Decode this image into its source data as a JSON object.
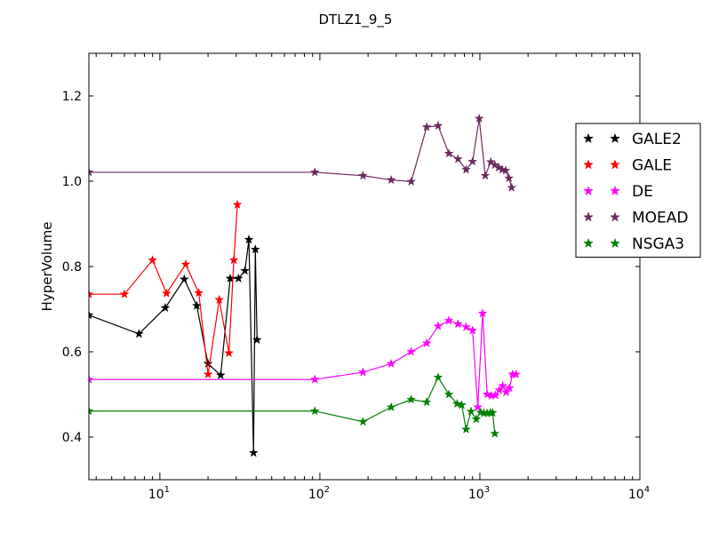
{
  "chart_data": {
    "type": "line",
    "title": "DTLZ1_9_5",
    "xlabel": "",
    "ylabel": "HyperVolume",
    "x_scale": "log",
    "xlim": [
      3.6,
      10000
    ],
    "ylim": [
      0.3,
      1.3
    ],
    "x_ticks": [
      {
        "value": 10,
        "base": "10",
        "exp": "1"
      },
      {
        "value": 100,
        "base": "10",
        "exp": "2"
      },
      {
        "value": 1000,
        "base": "10",
        "exp": "3"
      },
      {
        "value": 10000,
        "base": "10",
        "exp": "4"
      }
    ],
    "y_ticks": [
      {
        "value": 0.4,
        "label": "0.4"
      },
      {
        "value": 0.6,
        "label": "0.6"
      },
      {
        "value": 0.8,
        "label": "0.8"
      },
      {
        "value": 1.0,
        "label": "1.0"
      },
      {
        "value": 1.2,
        "label": "1.2"
      }
    ],
    "grid": false,
    "legend_position": "right",
    "series": [
      {
        "name": "GALE2",
        "color": "#000000",
        "x": [
          3.6,
          7.4,
          10.8,
          14.2,
          17.0,
          20.0,
          24.0,
          27.5,
          31.0,
          34.0,
          36.0,
          38.5,
          39.5,
          40.5
        ],
        "y": [
          0.686,
          0.642,
          0.703,
          0.77,
          0.708,
          0.572,
          0.545,
          0.772,
          0.772,
          0.79,
          0.863,
          0.363,
          0.84,
          0.628
        ]
      },
      {
        "name": "GALE",
        "color": "#ff0000",
        "x": [
          3.6,
          6.0,
          9.0,
          11.0,
          14.5,
          17.5,
          20.0,
          23.5,
          27.0,
          29.0,
          30.5
        ],
        "y": [
          0.735,
          0.735,
          0.815,
          0.737,
          0.805,
          0.738,
          0.547,
          0.722,
          0.597,
          0.815,
          0.945
        ]
      },
      {
        "name": "DE",
        "color": "#ff00ff",
        "x": [
          3.6,
          93,
          186,
          279,
          372,
          465,
          548,
          640,
          730,
          820,
          900,
          970,
          1040,
          1110,
          1180,
          1250,
          1320,
          1390,
          1460,
          1530,
          1600,
          1680
        ],
        "y": [
          0.535,
          0.535,
          0.552,
          0.572,
          0.6,
          0.62,
          0.66,
          0.673,
          0.665,
          0.658,
          0.65,
          0.47,
          0.69,
          0.5,
          0.497,
          0.498,
          0.51,
          0.52,
          0.505,
          0.515,
          0.547,
          0.547
        ]
      },
      {
        "name": "MOEAD",
        "color": "#6b2b5e",
        "x": [
          3.6,
          93,
          186,
          279,
          372,
          465,
          548,
          640,
          730,
          820,
          900,
          990,
          1080,
          1170,
          1240,
          1310,
          1380,
          1450,
          1520,
          1580
        ],
        "y": [
          1.021,
          1.021,
          1.013,
          1.003,
          0.999,
          1.127,
          1.13,
          1.065,
          1.052,
          1.027,
          1.046,
          1.147,
          1.013,
          1.045,
          1.038,
          1.032,
          1.027,
          1.025,
          1.007,
          0.985
        ]
      },
      {
        "name": "NSGA3",
        "color": "#008000",
        "x": [
          3.6,
          93,
          186,
          279,
          372,
          465,
          548,
          640,
          720,
          770,
          820,
          880,
          950,
          1010,
          1060,
          1110,
          1160,
          1200,
          1240
        ],
        "y": [
          0.461,
          0.461,
          0.436,
          0.47,
          0.488,
          0.482,
          0.54,
          0.5,
          0.478,
          0.475,
          0.418,
          0.46,
          0.442,
          0.458,
          0.456,
          0.456,
          0.457,
          0.457,
          0.408
        ]
      }
    ]
  }
}
